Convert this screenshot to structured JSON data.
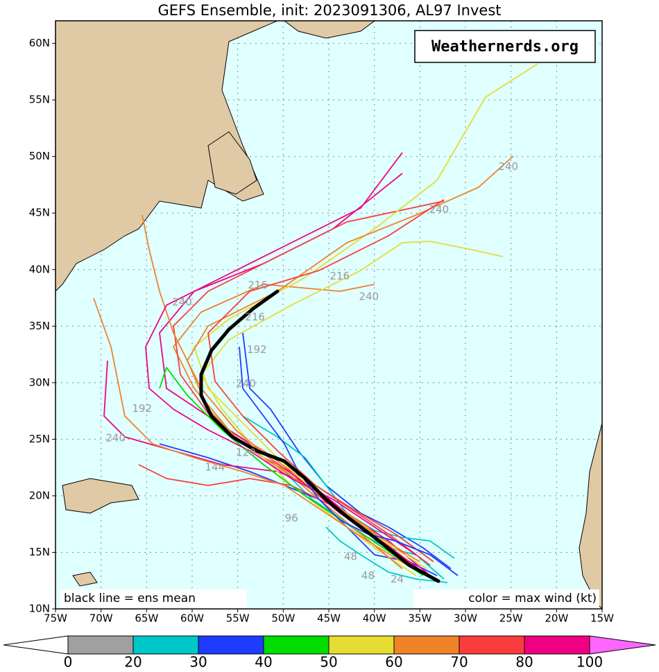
{
  "title": "GEFS Ensemble, init: 2023091306, AL97 Invest",
  "watermark": "Weathernerds.org",
  "note_left": "black line = ens mean",
  "note_right": "color = max wind (kt)",
  "map": {
    "lonlim": [
      -75,
      -15
    ],
    "latlim": [
      10,
      62
    ],
    "lon_ticks": [
      {
        "value": -75,
        "label": "75W"
      },
      {
        "value": -70,
        "label": "70W"
      },
      {
        "value": -65,
        "label": "65W"
      },
      {
        "value": -60,
        "label": "60W"
      },
      {
        "value": -55,
        "label": "55W"
      },
      {
        "value": -50,
        "label": "50W"
      },
      {
        "value": -45,
        "label": "45W"
      },
      {
        "value": -40,
        "label": "40W"
      },
      {
        "value": -35,
        "label": "35W"
      },
      {
        "value": -30,
        "label": "30W"
      },
      {
        "value": -25,
        "label": "25W"
      },
      {
        "value": -20,
        "label": "20W"
      },
      {
        "value": -15,
        "label": "15W"
      }
    ],
    "lat_ticks": [
      {
        "value": 10,
        "label": "10N"
      },
      {
        "value": 15,
        "label": "15N"
      },
      {
        "value": 20,
        "label": "20N"
      },
      {
        "value": 25,
        "label": "25N"
      },
      {
        "value": 30,
        "label": "30N"
      },
      {
        "value": 35,
        "label": "35N"
      },
      {
        "value": 40,
        "label": "40N"
      },
      {
        "value": 45,
        "label": "45N"
      },
      {
        "value": 50,
        "label": "50N"
      },
      {
        "value": 55,
        "label": "55N"
      },
      {
        "value": 60,
        "label": "60N"
      }
    ],
    "hour_labels": [
      {
        "text": "240",
        "lon": -25.3,
        "lat": 49.1
      },
      {
        "text": "240",
        "lon": -32.9,
        "lat": 45.3
      },
      {
        "text": "216",
        "lon": -43.8,
        "lat": 39.4
      },
      {
        "text": "240",
        "lon": -40.6,
        "lat": 37.6
      },
      {
        "text": "216",
        "lon": -52.8,
        "lat": 38.6
      },
      {
        "text": "240",
        "lon": -61.1,
        "lat": 37.1
      },
      {
        "text": "216",
        "lon": -53.1,
        "lat": 35.8
      },
      {
        "text": "192",
        "lon": -52.9,
        "lat": 32.9
      },
      {
        "text": "240",
        "lon": -54.1,
        "lat": 29.9
      },
      {
        "text": "192",
        "lon": -65.5,
        "lat": 27.7
      },
      {
        "text": "240",
        "lon": -68.4,
        "lat": 25.1
      },
      {
        "text": "144",
        "lon": -57.5,
        "lat": 22.5
      },
      {
        "text": "120",
        "lon": -54.1,
        "lat": 23.8
      },
      {
        "text": "96",
        "lon": -49.1,
        "lat": 18.0
      },
      {
        "text": "48",
        "lon": -42.6,
        "lat": 14.6
      },
      {
        "text": "48",
        "lon": -40.7,
        "lat": 12.9
      },
      {
        "text": "24",
        "lon": -37.5,
        "lat": 12.6
      }
    ]
  },
  "colorbar": {
    "ticks": [
      0,
      20,
      30,
      40,
      50,
      60,
      70,
      80,
      100
    ],
    "colors": [
      "#a0a0a0",
      "#00c8c8",
      "#1e3cff",
      "#00dc00",
      "#e6dc32",
      "#f08228",
      "#fa3c3c",
      "#f00082"
    ],
    "under_color": "#ffffff",
    "over_color": "#ff66ff"
  }
}
